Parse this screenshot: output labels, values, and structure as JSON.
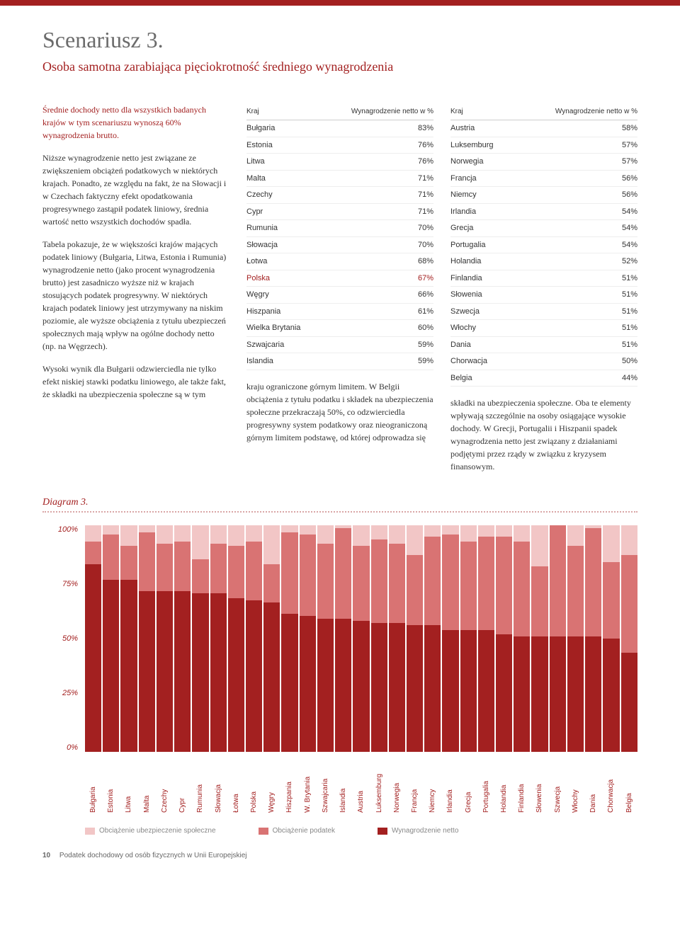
{
  "header": {
    "title": "Scenariusz 3.",
    "subtitle": "Osoba samotna zarabiająca pięciokrotność średniego wynagrodzenia"
  },
  "text": {
    "intro": "Średnie dochody netto dla wszystkich badanych krajów w tym scenariuszu wynoszą 60% wynagrodzenia brutto.",
    "p1": "Niższe wynagrodzenie netto jest związane ze zwiększeniem obciążeń podatkowych w niektórych krajach. Ponadto, ze względu na fakt, że na Słowacji i w Czechach faktyczny efekt opodatkowania progresywnego zastąpił podatek liniowy, średnia wartość netto wszystkich dochodów spadła.",
    "p2": "Tabela pokazuje, że w większości krajów mających podatek liniowy (Bułgaria, Litwa, Estonia i Rumunia) wynagrodzenie netto (jako procent wynagrodzenia brutto) jest zasadniczo wyższe niż w krajach stosujących podatek progresywny. W niektórych krajach podatek liniowy jest utrzymywany na niskim poziomie, ale wyższe obciążenia z tytułu ubezpieczeń społecznych mają wpływ na ogólne dochody netto (np. na Węgrzech).",
    "p3": "Wysoki wynik dla Bułgarii odzwierciedla nie tylko efekt niskiej stawki podatku liniowego, ale także fakt, że składki na ubezpieczenia społeczne są w tym",
    "p4": "kraju ograniczone górnym limitem. W Belgii obciążenia z tytułu podatku i składek na ubezpieczenia społeczne przekraczają 50%, co odzwierciedla progresywny system podatkowy oraz nieograniczoną górnym limitem podstawę, od której odprowadza się",
    "p5": "składki na ubezpieczenia społeczne. Oba te elementy wpływają szczególnie na osoby osiągające wysokie dochody. W Grecji, Portugalii i Hiszpanii spadek wynagrodzenia netto jest związany z działaniami podjętymi przez rządy w związku z kryzysem finansowym."
  },
  "table_header": {
    "country": "Kraj",
    "value": "Wynagrodzenie netto w %"
  },
  "table_left": [
    {
      "c": "Bułgaria",
      "v": "83%"
    },
    {
      "c": "Estonia",
      "v": "76%"
    },
    {
      "c": "Litwa",
      "v": "76%"
    },
    {
      "c": "Malta",
      "v": "71%"
    },
    {
      "c": "Czechy",
      "v": "71%"
    },
    {
      "c": "Cypr",
      "v": "71%"
    },
    {
      "c": "Rumunia",
      "v": "70%"
    },
    {
      "c": "Słowacja",
      "v": "70%"
    },
    {
      "c": "Łotwa",
      "v": "68%"
    },
    {
      "c": "Polska",
      "v": "67%",
      "hl": true
    },
    {
      "c": "Węgry",
      "v": "66%"
    },
    {
      "c": "Hiszpania",
      "v": "61%"
    },
    {
      "c": "Wielka Brytania",
      "v": "60%"
    },
    {
      "c": "Szwajcaria",
      "v": "59%"
    },
    {
      "c": "Islandia",
      "v": "59%"
    }
  ],
  "table_right": [
    {
      "c": "Austria",
      "v": "58%"
    },
    {
      "c": "Luksemburg",
      "v": "57%"
    },
    {
      "c": "Norwegia",
      "v": "57%"
    },
    {
      "c": "Francja",
      "v": "56%"
    },
    {
      "c": "Niemcy",
      "v": "56%"
    },
    {
      "c": "Irlandia",
      "v": "54%"
    },
    {
      "c": "Grecja",
      "v": "54%"
    },
    {
      "c": "Portugalia",
      "v": "54%"
    },
    {
      "c": "Holandia",
      "v": "52%"
    },
    {
      "c": "Finlandia",
      "v": "51%"
    },
    {
      "c": "Słowenia",
      "v": "51%"
    },
    {
      "c": "Szwecja",
      "v": "51%"
    },
    {
      "c": "Włochy",
      "v": "51%"
    },
    {
      "c": "Dania",
      "v": "51%"
    },
    {
      "c": "Chorwacja",
      "v": "50%"
    },
    {
      "c": "Belgia",
      "v": "44%"
    }
  ],
  "diagram": {
    "label": "Diagram 3.",
    "y_ticks": [
      "100%",
      "75%",
      "50%",
      "25%",
      "0%"
    ],
    "colors": {
      "social": "#f2c6c6",
      "tax": "#d97373",
      "net": "#a32020"
    },
    "legend": {
      "social": "Obciążenie ubezpieczenie społeczne",
      "tax": "Obciążenie podatek",
      "net": "Wynagrodzenie netto"
    },
    "bars": [
      {
        "label": "Bułgaria",
        "net": 83,
        "tax": 10,
        "social": 7
      },
      {
        "label": "Estonia",
        "net": 76,
        "tax": 20,
        "social": 4
      },
      {
        "label": "Litwa",
        "net": 76,
        "tax": 15,
        "social": 9
      },
      {
        "label": "Malta",
        "net": 71,
        "tax": 26,
        "social": 3
      },
      {
        "label": "Czechy",
        "net": 71,
        "tax": 21,
        "social": 8
      },
      {
        "label": "Cypr",
        "net": 71,
        "tax": 22,
        "social": 7
      },
      {
        "label": "Rumunia",
        "net": 70,
        "tax": 15,
        "social": 15
      },
      {
        "label": "Słowacja",
        "net": 70,
        "tax": 22,
        "social": 8
      },
      {
        "label": "Łotwa",
        "net": 68,
        "tax": 23,
        "social": 9
      },
      {
        "label": "Polska",
        "net": 67,
        "tax": 26,
        "social": 7
      },
      {
        "label": "Węgry",
        "net": 66,
        "tax": 17,
        "social": 17
      },
      {
        "label": "Hiszpania",
        "net": 61,
        "tax": 36,
        "social": 3
      },
      {
        "label": "W. Brytania",
        "net": 60,
        "tax": 36,
        "social": 4
      },
      {
        "label": "Szwajcaria",
        "net": 59,
        "tax": 33,
        "social": 8
      },
      {
        "label": "Islandia",
        "net": 59,
        "tax": 40,
        "social": 1
      },
      {
        "label": "Austria",
        "net": 58,
        "tax": 33,
        "social": 9
      },
      {
        "label": "Luksemburg",
        "net": 57,
        "tax": 37,
        "social": 6
      },
      {
        "label": "Norwegia",
        "net": 57,
        "tax": 35,
        "social": 8
      },
      {
        "label": "Francja",
        "net": 56,
        "tax": 31,
        "social": 13
      },
      {
        "label": "Niemcy",
        "net": 56,
        "tax": 39,
        "social": 5
      },
      {
        "label": "Irlandia",
        "net": 54,
        "tax": 42,
        "social": 4
      },
      {
        "label": "Grecja",
        "net": 54,
        "tax": 39,
        "social": 7
      },
      {
        "label": "Portugalia",
        "net": 54,
        "tax": 41,
        "social": 5
      },
      {
        "label": "Holandia",
        "net": 52,
        "tax": 43,
        "social": 5
      },
      {
        "label": "Finlandia",
        "net": 51,
        "tax": 42,
        "social": 7
      },
      {
        "label": "Słowenia",
        "net": 51,
        "tax": 31,
        "social": 18
      },
      {
        "label": "Szwecja",
        "net": 51,
        "tax": 49,
        "social": 0
      },
      {
        "label": "Włochy",
        "net": 51,
        "tax": 40,
        "social": 9
      },
      {
        "label": "Dania",
        "net": 51,
        "tax": 48,
        "social": 1
      },
      {
        "label": "Chorwacja",
        "net": 50,
        "tax": 34,
        "social": 16
      },
      {
        "label": "Belgia",
        "net": 44,
        "tax": 43,
        "social": 13
      }
    ]
  },
  "footer": {
    "page": "10",
    "doc": "Podatek dochodowy od osób fizycznych w Unii Europejskiej"
  }
}
